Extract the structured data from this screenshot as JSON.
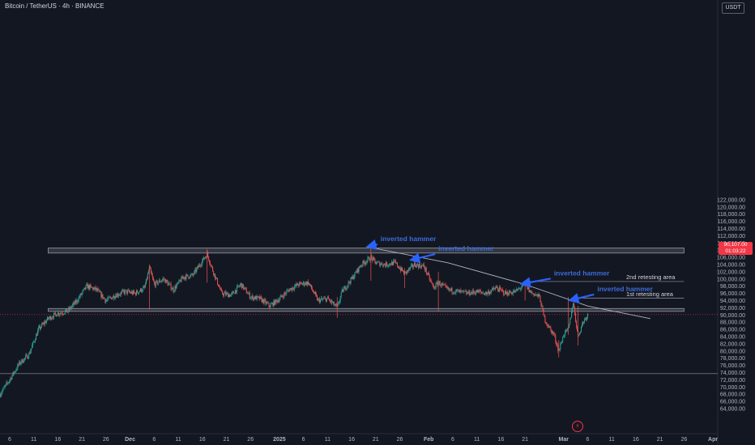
{
  "header": {
    "title": "Bitcoin / TetherUS · 4h · BINANCE",
    "unit": "USDT"
  },
  "price_badge": {
    "value": "90,107.00",
    "countdown": "01:03:22"
  },
  "logo": {
    "icon": "tv-logo-icon",
    "glyph": "⚡"
  },
  "colors": {
    "background": "#131722",
    "up": "#26a69a",
    "down": "#ef5350",
    "annotation": "#2962ff",
    "annotation_text": "#3d6bd9",
    "zone": "#9598a1",
    "trendline": "#b2b5be",
    "last_price": "#f23645"
  },
  "chart_data": {
    "type": "candlestick",
    "title": "Bitcoin / TetherUS · 4h · BINANCE",
    "interval": "4h",
    "exchange": "BINANCE",
    "x_range": [
      "2024-11-04",
      "2025-04-02"
    ],
    "ylim": [
      64000,
      122000
    ],
    "y_ticks": [
      "64,000.00",
      "66,000.00",
      "68,000.00",
      "70,000.00",
      "72,000.00",
      "74,000.00",
      "76,000.00",
      "78,000.00",
      "80,000.00",
      "82,000.00",
      "84,000.00",
      "86,000.00",
      "88,000.00",
      "90,000.00",
      "92,000.00",
      "94,000.00",
      "96,000.00",
      "98,000.00",
      "100,000.00",
      "102,000.00",
      "104,000.00",
      "106,000.00",
      "108,000.00",
      "110,000.00",
      "112,000.00",
      "114,000.00",
      "116,000.00",
      "118,000.00",
      "120,000.00",
      "122,000.00"
    ],
    "x_ticks": [
      {
        "label": "6",
        "date": "2024-11-06"
      },
      {
        "label": "11",
        "date": "2024-11-11"
      },
      {
        "label": "16",
        "date": "2024-11-16"
      },
      {
        "label": "21",
        "date": "2024-11-21"
      },
      {
        "label": "26",
        "date": "2024-11-26"
      },
      {
        "label": "Dec",
        "date": "2024-12-01"
      },
      {
        "label": "6",
        "date": "2024-12-06"
      },
      {
        "label": "11",
        "date": "2024-12-11"
      },
      {
        "label": "16",
        "date": "2024-12-16"
      },
      {
        "label": "21",
        "date": "2024-12-21"
      },
      {
        "label": "26",
        "date": "2024-12-26"
      },
      {
        "label": "2025",
        "date": "2025-01-01"
      },
      {
        "label": "6",
        "date": "2025-01-06"
      },
      {
        "label": "11",
        "date": "2025-01-11"
      },
      {
        "label": "16",
        "date": "2025-01-16"
      },
      {
        "label": "21",
        "date": "2025-01-21"
      },
      {
        "label": "26",
        "date": "2025-01-26"
      },
      {
        "label": "Feb",
        "date": "2025-02-01"
      },
      {
        "label": "6",
        "date": "2025-02-06"
      },
      {
        "label": "11",
        "date": "2025-02-11"
      },
      {
        "label": "16",
        "date": "2025-02-16"
      },
      {
        "label": "21",
        "date": "2025-02-21"
      },
      {
        "label": "Mar",
        "date": "2025-03-01"
      },
      {
        "label": "6",
        "date": "2025-03-06"
      },
      {
        "label": "11",
        "date": "2025-03-11"
      },
      {
        "label": "16",
        "date": "2025-03-16"
      },
      {
        "label": "21",
        "date": "2025-03-21"
      },
      {
        "label": "26",
        "date": "2025-03-26"
      },
      {
        "label": "Apr",
        "date": "2025-04-01"
      }
    ],
    "price_path": [
      [
        "2024-11-04",
        68000
      ],
      [
        "2024-11-06",
        72000
      ],
      [
        "2024-11-08",
        76500
      ],
      [
        "2024-11-10",
        79000
      ],
      [
        "2024-11-12",
        86000
      ],
      [
        "2024-11-14",
        89000
      ],
      [
        "2024-11-16",
        90500
      ],
      [
        "2024-11-18",
        91000
      ],
      [
        "2024-11-20",
        94000
      ],
      [
        "2024-11-22",
        98000
      ],
      [
        "2024-11-24",
        97000
      ],
      [
        "2024-11-26",
        94000
      ],
      [
        "2024-11-28",
        95500
      ],
      [
        "2024-11-30",
        96500
      ],
      [
        "2024-12-02",
        96000
      ],
      [
        "2024-12-04",
        97500
      ],
      [
        "2024-12-05",
        103000
      ],
      [
        "2024-12-06",
        98500
      ],
      [
        "2024-12-08",
        100000
      ],
      [
        "2024-12-10",
        97000
      ],
      [
        "2024-12-12",
        100500
      ],
      [
        "2024-12-14",
        101000
      ],
      [
        "2024-12-16",
        105000
      ],
      [
        "2024-12-17",
        107000
      ],
      [
        "2024-12-18",
        103000
      ],
      [
        "2024-12-20",
        96000
      ],
      [
        "2024-12-22",
        95500
      ],
      [
        "2024-12-24",
        98500
      ],
      [
        "2024-12-26",
        95000
      ],
      [
        "2024-12-28",
        94500
      ],
      [
        "2024-12-30",
        92500
      ],
      [
        "2025-01-01",
        94500
      ],
      [
        "2025-01-03",
        97000
      ],
      [
        "2025-01-05",
        98500
      ],
      [
        "2025-01-07",
        99000
      ],
      [
        "2025-01-09",
        94000
      ],
      [
        "2025-01-11",
        94500
      ],
      [
        "2025-01-13",
        92000
      ],
      [
        "2025-01-14",
        96500
      ],
      [
        "2025-01-16",
        100000
      ],
      [
        "2025-01-18",
        104000
      ],
      [
        "2025-01-20",
        106000
      ],
      [
        "2025-01-21",
        104500
      ],
      [
        "2025-01-23",
        104000
      ],
      [
        "2025-01-25",
        104500
      ],
      [
        "2025-01-27",
        101500
      ],
      [
        "2025-01-29",
        104000
      ],
      [
        "2025-01-31",
        103500
      ],
      [
        "2025-02-02",
        97500
      ],
      [
        "2025-02-03",
        99000
      ],
      [
        "2025-02-05",
        97000
      ],
      [
        "2025-02-07",
        96500
      ],
      [
        "2025-02-09",
        96000
      ],
      [
        "2025-02-11",
        96500
      ],
      [
        "2025-02-13",
        96000
      ],
      [
        "2025-02-15",
        97500
      ],
      [
        "2025-02-17",
        96000
      ],
      [
        "2025-02-19",
        96500
      ],
      [
        "2025-02-21",
        98500
      ],
      [
        "2025-02-22",
        96500
      ],
      [
        "2025-02-24",
        95000
      ],
      [
        "2025-02-25",
        89000
      ],
      [
        "2025-02-26",
        86500
      ],
      [
        "2025-02-27",
        84500
      ],
      [
        "2025-02-28",
        80000
      ],
      [
        "2025-03-01",
        84500
      ],
      [
        "2025-03-02",
        86000
      ],
      [
        "2025-03-03",
        93500
      ],
      [
        "2025-03-04",
        84000
      ],
      [
        "2025-03-05",
        88000
      ],
      [
        "2025-03-06",
        90107
      ]
    ],
    "wicks": [
      {
        "date": "2024-12-05",
        "high": 104000,
        "low": 91500
      },
      {
        "date": "2024-12-17",
        "high": 108300,
        "low": 99000
      },
      {
        "date": "2025-01-13",
        "high": 95000,
        "low": 89200
      },
      {
        "date": "2025-01-20",
        "high": 109500,
        "low": 99500
      },
      {
        "date": "2025-01-27",
        "high": 103000,
        "low": 97500
      },
      {
        "date": "2025-02-03",
        "high": 102000,
        "low": 91000
      },
      {
        "date": "2025-02-21",
        "high": 99500,
        "low": 94000
      },
      {
        "date": "2025-02-28",
        "high": 83000,
        "low": 78200
      },
      {
        "date": "2025-03-02",
        "high": 95000,
        "low": 84500
      },
      {
        "date": "2025-03-04",
        "high": 92500,
        "low": 81500
      }
    ],
    "zones": [
      {
        "from": "2024-11-14",
        "to": "2025-03-26",
        "y_low": 107200,
        "y_high": 108600
      },
      {
        "from": "2024-11-14",
        "to": "2025-03-26",
        "y_low": 91000,
        "y_high": 91800
      }
    ],
    "levels": [
      {
        "price": 99300,
        "from": "2025-02-21",
        "to": "2025-03-26"
      },
      {
        "price": 94700,
        "from": "2025-03-03",
        "to": "2025-03-26"
      },
      {
        "price": 73700,
        "from": "2024-11-04",
        "to": "2025-04-02"
      }
    ],
    "trendline": [
      [
        "2025-01-19",
        109000
      ],
      [
        "2025-02-05",
        104500
      ],
      [
        "2025-02-21",
        98500
      ],
      [
        "2025-03-06",
        92500
      ],
      [
        "2025-03-19",
        89000
      ]
    ],
    "annotations": [
      {
        "text": "inverted hammer",
        "date": "2025-01-22",
        "price": 110500,
        "arrow_to": {
          "date": "2025-01-20",
          "price": 109200
        }
      },
      {
        "text": "inverted hammer",
        "date": "2025-02-03",
        "price": 107800,
        "arrow_to": {
          "date": "2025-01-29",
          "price": 105500
        }
      },
      {
        "text": "inverted hammer",
        "date": "2025-02-27",
        "price": 101000,
        "arrow_to": {
          "date": "2025-02-21",
          "price": 98800
        }
      },
      {
        "text": "inverted hammer",
        "date": "2025-03-08",
        "price": 96600,
        "arrow_to": {
          "date": "2025-03-03",
          "price": 94300
        }
      }
    ],
    "level_labels": [
      {
        "text": "2nd retesting area",
        "date": "2025-03-14",
        "price": 100000
      },
      {
        "text": "1st retesting area",
        "date": "2025-03-14",
        "price": 95200
      }
    ],
    "last_price": 90107
  }
}
